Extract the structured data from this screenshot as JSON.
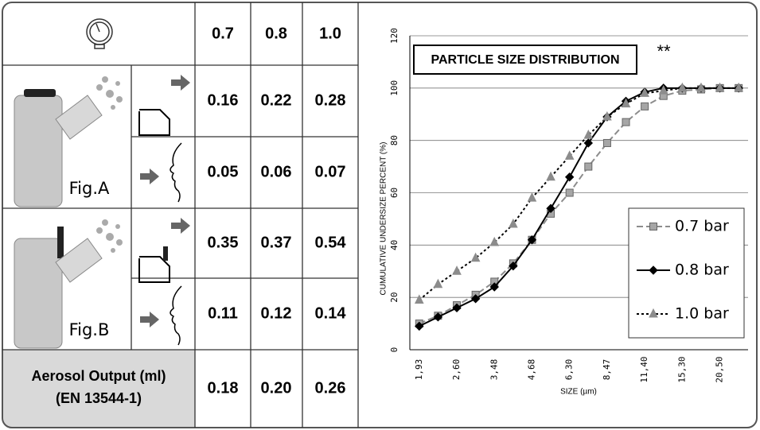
{
  "table": {
    "header": [
      "0.7",
      "0.8",
      "1.0"
    ],
    "rows": [
      [
        "0.16",
        "0.22",
        "0.28"
      ],
      [
        "0.05",
        "0.06",
        "0.07"
      ],
      [
        "0.35",
        "0.37",
        "0.54"
      ],
      [
        "0.11",
        "0.12",
        "0.14"
      ]
    ],
    "figures": [
      "Fig.A",
      "Fig.B"
    ],
    "footer_label": [
      "Aerosol Output (ml)",
      "(EN 13544-1)"
    ],
    "footer_values": [
      "0.18",
      "0.20",
      "0.26"
    ]
  },
  "chart_data": {
    "type": "line",
    "title": "PARTICLE SIZE DISTRIBUTION",
    "annotation": "**",
    "x_label": "SIZE (µm)",
    "y_label": "CUMULATIVE UNDERSIZE PERCENT (%)",
    "categories": [
      "1,93",
      null,
      "2,60",
      null,
      "3,48",
      null,
      "4,68",
      null,
      "6,30",
      null,
      "8,47",
      null,
      "11,40",
      null,
      "15,30",
      null,
      "20,50",
      null
    ],
    "series": [
      {
        "name": "0.7 bar",
        "color": "#8c8c8c",
        "marker_color": "#a6a6a6",
        "marker": "square",
        "line_style": "dashed",
        "values": [
          10,
          13,
          17,
          21,
          26,
          33,
          42,
          52,
          60,
          70,
          79,
          87,
          93,
          97,
          99,
          99.5,
          100,
          100
        ]
      },
      {
        "name": "0.8 bar",
        "color": "#000000",
        "marker_color": "#000000",
        "marker": "diamond",
        "line_style": "solid",
        "values": [
          9,
          12.5,
          16,
          19.5,
          24,
          32,
          42,
          54,
          66,
          79,
          89,
          95,
          98.5,
          100,
          100,
          100,
          100,
          100
        ]
      },
      {
        "name": "1.0 bar",
        "color": "#000000",
        "marker_color": "#8c8c8c",
        "marker": "triangle",
        "line_style": "dotted",
        "values": [
          19,
          25,
          30,
          35,
          41,
          48,
          58,
          66,
          74,
          82,
          89,
          94,
          98,
          99,
          100,
          100,
          100,
          100
        ]
      }
    ],
    "ylim": [
      0,
      120
    ],
    "yticks": [
      0,
      20,
      40,
      60,
      80,
      100,
      120
    ],
    "grid": true
  }
}
